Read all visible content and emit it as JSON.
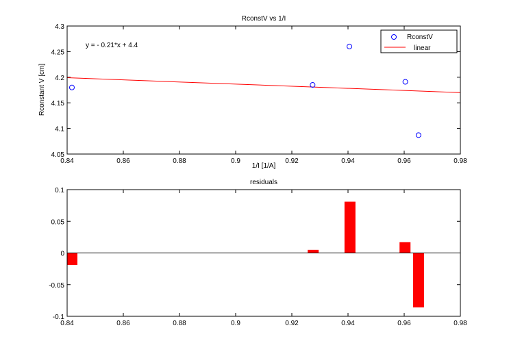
{
  "chart_data": [
    {
      "type": "scatter",
      "title": "RconstV vs 1/I",
      "xlabel": "1/I [1/A]",
      "ylabel": "Rconstant V [cm]",
      "xlim": [
        0.84,
        0.98
      ],
      "ylim": [
        4.05,
        4.3
      ],
      "xticks": [
        "0.84",
        "0.86",
        "0.88",
        "0.9",
        "0.92",
        "0.94",
        "0.96",
        "0.98"
      ],
      "yticks": [
        "4.05",
        "4.1",
        "4.15",
        "4.2",
        "4.25",
        "4.3"
      ],
      "annotation": "y = - 0.21*x + 4.4",
      "legend_position": "top-right",
      "grid": false,
      "series": [
        {
          "name": "RconstV",
          "marker": "circle",
          "color": "#0000ff",
          "x": [
            0.8417,
            0.9274,
            0.9405,
            0.9604,
            0.9651
          ],
          "y": [
            4.18,
            4.185,
            4.26,
            4.191,
            4.087
          ]
        },
        {
          "name": "linear",
          "type": "line",
          "color": "#ff0000",
          "x": [
            0.84,
            0.98
          ],
          "y": [
            4.199,
            4.17
          ]
        }
      ]
    },
    {
      "type": "bar",
      "title": "residuals",
      "xlim": [
        0.84,
        0.98
      ],
      "ylim": [
        -0.1,
        0.1
      ],
      "xticks": [
        "0.84",
        "0.86",
        "0.88",
        "0.9",
        "0.92",
        "0.94",
        "0.96",
        "0.98"
      ],
      "yticks": [
        "-0.1",
        "-0.05",
        "0",
        "0.05",
        "0.1"
      ],
      "color": "#ff0000",
      "bar_width": 0.0039,
      "x": [
        0.8417,
        0.9276,
        0.9407,
        0.9603,
        0.9651
      ],
      "values": [
        -0.019,
        0.005,
        0.081,
        0.017,
        -0.086
      ]
    }
  ]
}
